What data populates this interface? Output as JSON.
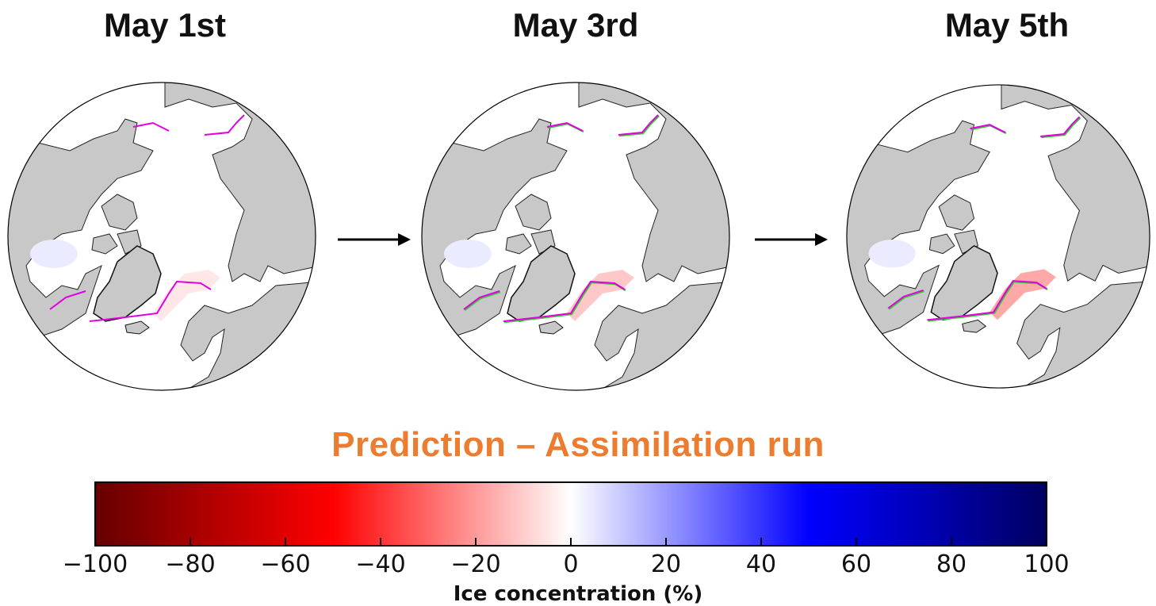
{
  "panels": [
    {
      "title": "May 1st"
    },
    {
      "title": "May 3rd"
    },
    {
      "title": "May 5th"
    }
  ],
  "main_title": "Prediction –  Assimilation run",
  "colorbar": {
    "label": "Ice concentration (%)",
    "min": -100,
    "max": 100,
    "ticks": [
      "−100",
      "−80",
      "−60",
      "−40",
      "−20",
      "0",
      "20",
      "40",
      "60",
      "80",
      "100"
    ],
    "colormap": [
      "#660000",
      "#b30000",
      "#ff0000",
      "#ff8080",
      "#ffffff",
      "#8080ff",
      "#0000ff",
      "#0000b3",
      "#000060"
    ]
  },
  "colors": {
    "land": "#c8c8c8",
    "ice_edge_prediction": "#e000e0",
    "ice_edge_assimilation": "#33cc33",
    "title_accent": "#ec7c30"
  }
}
